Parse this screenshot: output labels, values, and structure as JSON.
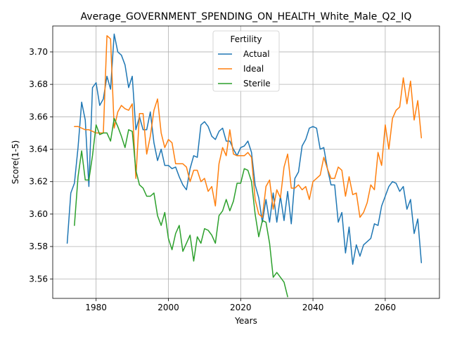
{
  "chart_data": {
    "type": "line",
    "title": "Average_GOVERNMENT_SPENDING_ON_HEALTH_White_Male_Q2_IQ",
    "xlabel": "Years",
    "ylabel": "Score(1-5)",
    "xlim": [
      1968,
      2075
    ],
    "ylim": [
      3.548,
      3.716
    ],
    "xticks": [
      1980,
      2000,
      2020,
      2040,
      2060
    ],
    "yticks": [
      3.56,
      3.58,
      3.6,
      3.62,
      3.64,
      3.66,
      3.68,
      3.7
    ],
    "ytick_labels": [
      "3.56",
      "3.58",
      "3.60",
      "3.62",
      "3.64",
      "3.66",
      "3.68",
      "3.70"
    ],
    "grid": true,
    "legend": {
      "title": "Fertility",
      "placement": "upper center"
    },
    "series": [
      {
        "name": "Actual",
        "color": "#1f77b4",
        "x_start": 1972,
        "values": [
          3.582,
          3.613,
          3.619,
          3.641,
          3.669,
          3.658,
          3.617,
          3.678,
          3.681,
          3.667,
          3.671,
          3.685,
          3.677,
          3.711,
          3.7,
          3.698,
          3.692,
          3.678,
          3.685,
          3.652,
          3.66,
          3.652,
          3.652,
          3.663,
          3.644,
          3.633,
          3.64,
          3.63,
          3.63,
          3.628,
          3.629,
          3.623,
          3.618,
          3.615,
          3.628,
          3.636,
          3.635,
          3.655,
          3.657,
          3.654,
          3.648,
          3.646,
          3.651,
          3.653,
          3.645,
          3.645,
          3.64,
          3.636,
          3.641,
          3.642,
          3.645,
          3.638,
          3.618,
          3.61,
          3.595,
          3.609,
          3.595,
          3.613,
          3.595,
          3.611,
          3.596,
          3.614,
          3.594,
          3.622,
          3.626,
          3.642,
          3.646,
          3.653,
          3.654,
          3.653,
          3.64,
          3.641,
          3.628,
          3.618,
          3.618,
          3.595,
          3.601,
          3.576,
          3.592,
          3.569,
          3.581,
          3.574,
          3.581,
          3.583,
          3.585,
          3.594,
          3.593,
          3.605,
          3.611,
          3.617,
          3.62,
          3.619,
          3.614,
          3.617,
          3.603,
          3.609,
          3.588,
          3.597,
          3.57
        ]
      },
      {
        "name": "Ideal",
        "color": "#ff7f0e",
        "x_start": 1974,
        "values": [
          3.654,
          3.654,
          3.653,
          3.652,
          3.652,
          3.651,
          3.65,
          3.65,
          3.65,
          3.71,
          3.708,
          3.653,
          3.663,
          3.667,
          3.665,
          3.664,
          3.668,
          3.622,
          3.662,
          3.662,
          3.637,
          3.648,
          3.664,
          3.671,
          3.65,
          3.641,
          3.646,
          3.644,
          3.631,
          3.631,
          3.631,
          3.629,
          3.62,
          3.627,
          3.627,
          3.62,
          3.622,
          3.614,
          3.617,
          3.605,
          3.631,
          3.641,
          3.636,
          3.652,
          3.637,
          3.636,
          3.636,
          3.636,
          3.638,
          3.635,
          3.609,
          3.6,
          3.598,
          3.617,
          3.621,
          3.603,
          3.615,
          3.61,
          3.629,
          3.637,
          3.616,
          3.616,
          3.618,
          3.615,
          3.617,
          3.609,
          3.62,
          3.622,
          3.624,
          3.635,
          3.628,
          3.622,
          3.622,
          3.629,
          3.627,
          3.611,
          3.623,
          3.612,
          3.613,
          3.598,
          3.601,
          3.607,
          3.618,
          3.615,
          3.638,
          3.63,
          3.655,
          3.64,
          3.659,
          3.664,
          3.666,
          3.684,
          3.668,
          3.682,
          3.658,
          3.67,
          3.647
        ]
      },
      {
        "name": "Sterile",
        "color": "#2ca02c",
        "x_start": 1974,
        "values": [
          3.593,
          3.623,
          3.639,
          3.621,
          3.621,
          3.636,
          3.655,
          3.649,
          3.65,
          3.65,
          3.645,
          3.659,
          3.654,
          3.648,
          3.641,
          3.652,
          3.651,
          3.627,
          3.618,
          3.616,
          3.611,
          3.611,
          3.613,
          3.599,
          3.593,
          3.601,
          3.585,
          3.578,
          3.588,
          3.593,
          3.577,
          3.582,
          3.587,
          3.571,
          3.586,
          3.582,
          3.591,
          3.59,
          3.587,
          3.582,
          3.599,
          3.602,
          3.609,
          3.602,
          3.608,
          3.619,
          3.619,
          3.628,
          3.627,
          3.62,
          3.6,
          3.586,
          3.596,
          3.595,
          3.582,
          3.561,
          3.564,
          3.561,
          3.558,
          3.549
        ]
      }
    ]
  }
}
